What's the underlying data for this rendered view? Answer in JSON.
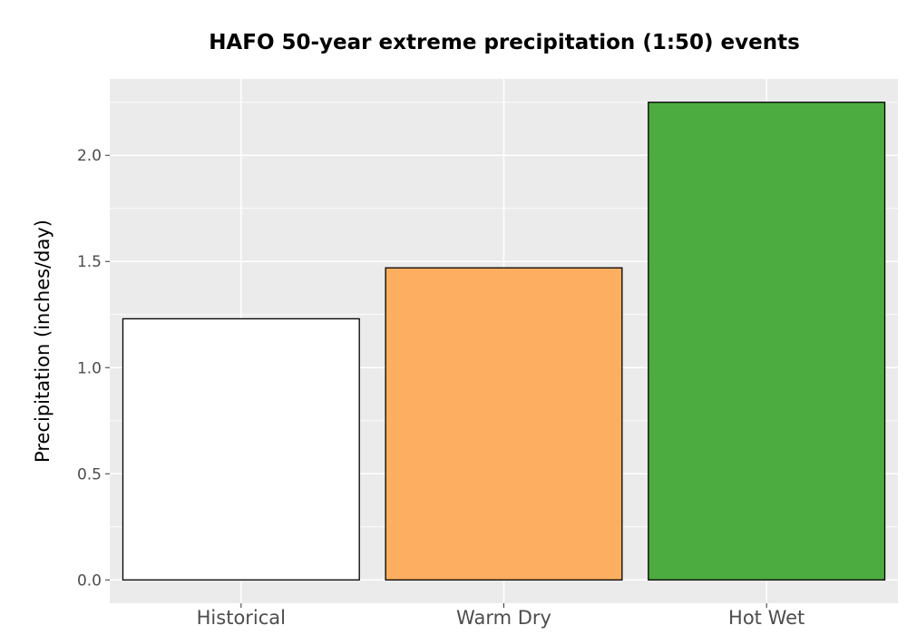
{
  "chart_data": {
    "type": "bar",
    "title": "HAFO 50-year extreme precipitation (1:50) events",
    "xlabel": "",
    "ylabel": "Precipitation (inches/day)",
    "categories": [
      "Historical",
      "Warm Dry",
      "Hot Wet"
    ],
    "values": [
      1.23,
      1.47,
      2.25
    ],
    "bar_colors": [
      "#ffffff",
      "#fdae61",
      "#4dac3f"
    ],
    "bar_outline_color": "#000000",
    "panel_background": "#ebebeb",
    "grid_color": "#ffffff",
    "grid": true,
    "ylim": [
      -0.11,
      2.36
    ],
    "yticks": [
      0.0,
      0.5,
      1.0,
      1.5,
      2.0
    ],
    "ytick_labels": [
      "0.0",
      "0.5",
      "1.0",
      "1.5",
      "2.0"
    ]
  }
}
